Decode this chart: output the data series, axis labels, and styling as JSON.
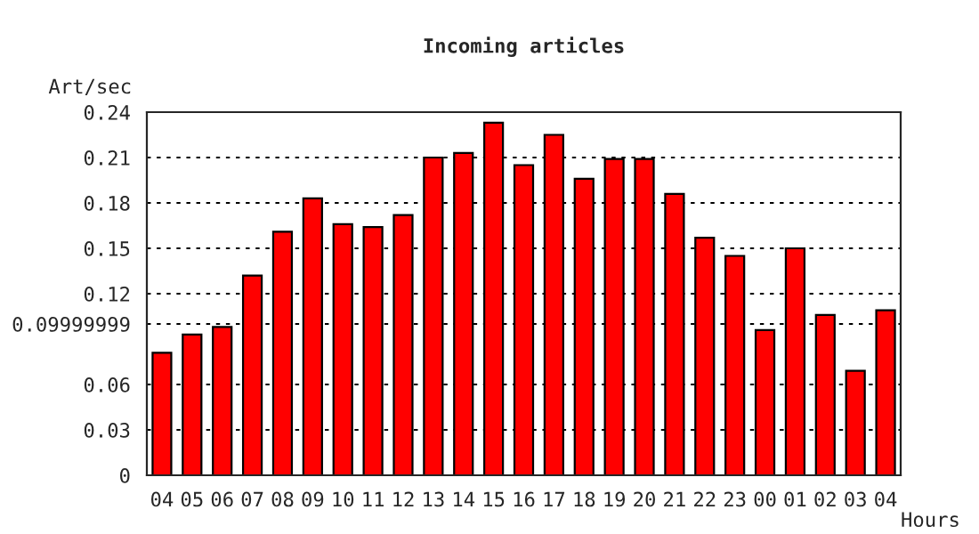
{
  "chart_data": {
    "type": "bar",
    "title": "Incoming articles",
    "xlabel": "Hours",
    "ylabel": "Art/sec",
    "categories": [
      "04",
      "05",
      "06",
      "07",
      "08",
      "09",
      "10",
      "11",
      "12",
      "13",
      "14",
      "15",
      "16",
      "17",
      "18",
      "19",
      "20",
      "21",
      "22",
      "23",
      "00",
      "01",
      "02",
      "03",
      "04"
    ],
    "values": [
      0.081,
      0.093,
      0.098,
      0.132,
      0.161,
      0.183,
      0.166,
      0.164,
      0.172,
      0.21,
      0.213,
      0.233,
      0.205,
      0.225,
      0.196,
      0.209,
      0.209,
      0.186,
      0.157,
      0.145,
      0.096,
      0.15,
      0.106,
      0.069,
      0.109
    ],
    "color": "#ff0000",
    "ylim": [
      0,
      0.24
    ],
    "yticks": [
      0,
      0.03,
      0.06,
      0.09999999,
      0.12,
      0.15,
      0.18,
      0.21,
      0.24
    ],
    "grid": "y"
  }
}
